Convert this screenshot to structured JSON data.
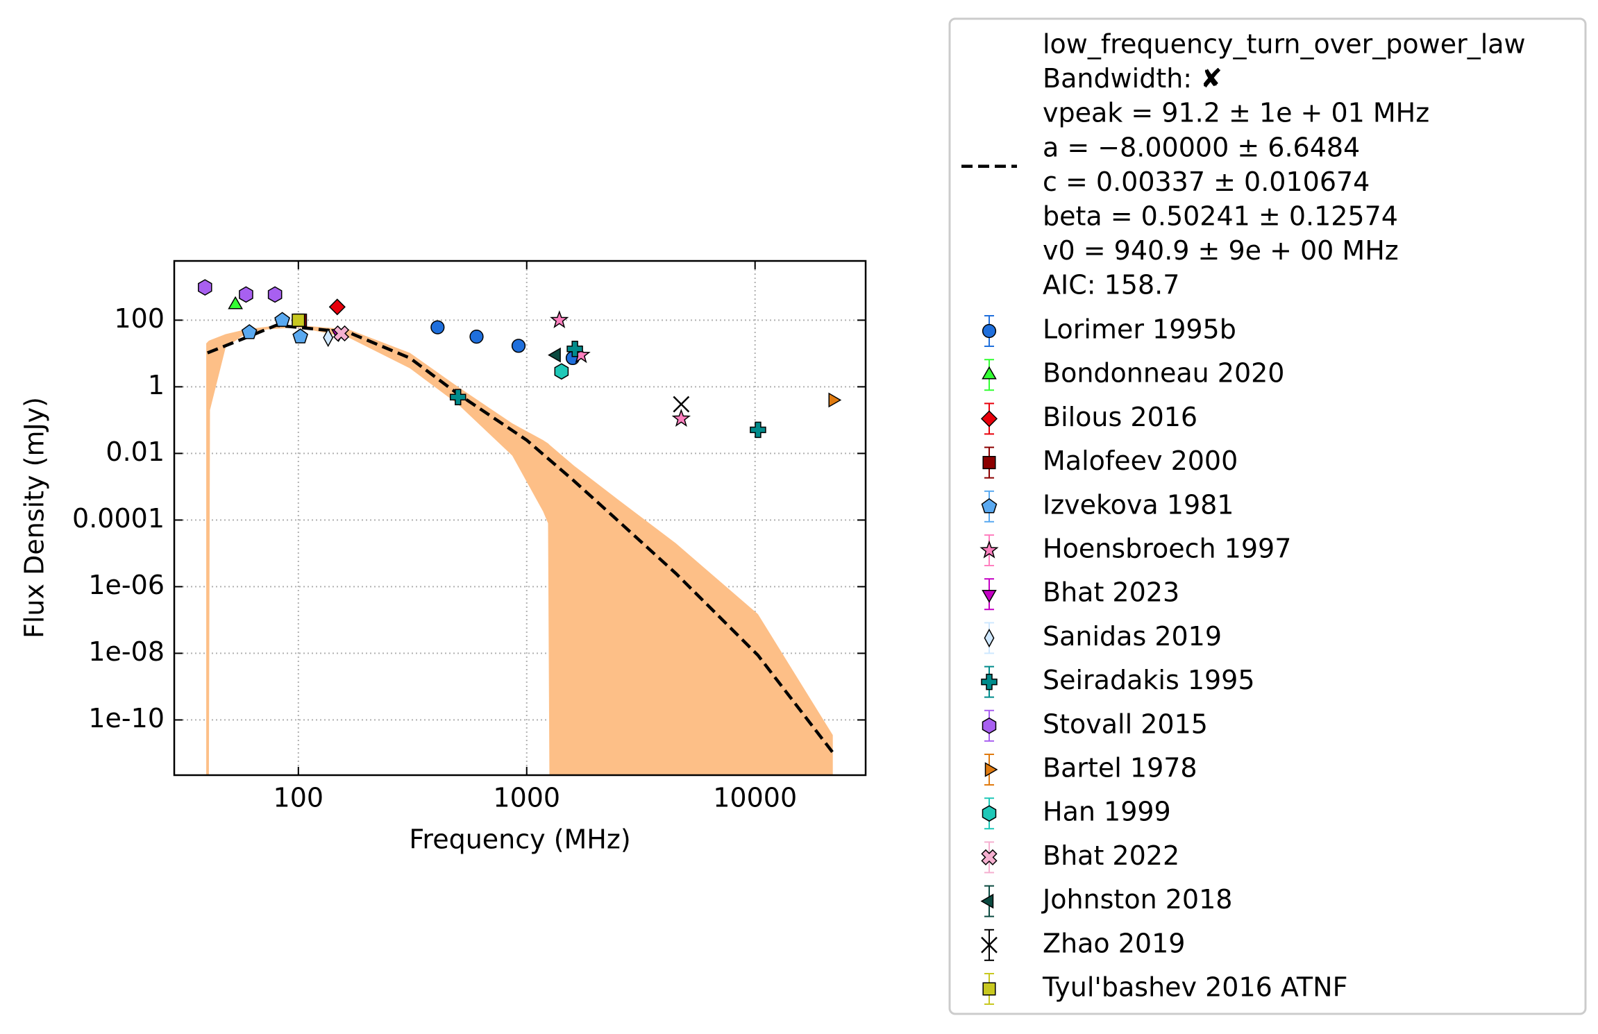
{
  "chart_data": {
    "type": "scatter",
    "xlabel": "Frequency (MHz)",
    "ylabel": "Flux Density (mJy)",
    "xscale": "log",
    "yscale": "log",
    "grid": true,
    "legend": "outside right",
    "xlim": [
      28.6,
      30500
    ],
    "ylim": [
      2.2e-12,
      6000
    ],
    "xticks": [
      100,
      1000,
      10000
    ],
    "yticks": [
      100,
      1,
      0.01,
      0.0001,
      {
        "value": 1e-06,
        "label": "1e-06"
      },
      {
        "value": 1e-08,
        "label": "1e-08"
      },
      {
        "value": 1e-10,
        "label": "1e-10"
      }
    ],
    "fit": {
      "name": "low_frequency_turn_over_power_law",
      "lines": [
        "Bandwidth: ✘",
        "vpeak = 91.2 ± 1e + 01 MHz",
        "a = −8.00000 ± 6.6484",
        "c = 0.00337 ± 0.010674",
        "beta = 0.50241 ± 0.12574",
        "v0 = 940.9 ± 9e + 00 MHz",
        "AIC: 158.7"
      ],
      "color": "#000000",
      "x": [
        40,
        59,
        80,
        100,
        166,
        308,
        500,
        1000,
        1610,
        2420,
        4500,
        10300,
        21900
      ],
      "values": [
        10.4,
        30,
        70,
        61,
        43,
        7.3,
        0.61,
        0.025,
        0.0015,
        0.00012,
        2.5e-06,
        8.7e-09,
        1.05e-11
      ]
    },
    "band": {
      "color": "#fdbf87",
      "x": [
        39.5,
        40.5,
        41,
        48,
        59,
        73,
        100,
        166,
        308,
        500,
        864,
        1180,
        1240,
        1260,
        1610,
        2420,
        4500,
        10300,
        21900
      ],
      "upper": [
        20,
        24,
        25,
        38,
        53,
        64,
        70,
        53,
        10.4,
        1,
        0.08,
        0.025,
        0.02,
        0.018,
        0.0043,
        0.0005,
        2e-05,
        1.5e-07,
        3.5e-11
      ],
      "lower": [
        1e-13,
        1e-13,
        0.2,
        15,
        40,
        53,
        61,
        30,
        3.6,
        0.3,
        0.0086,
        0.00018,
        8e-05,
        1e-13,
        1e-13,
        1e-13,
        1e-13,
        1e-13,
        1e-13
      ]
    },
    "series": [
      {
        "name": "Lorimer 1995b",
        "color": "#1f6fdc",
        "marker": "o",
        "x": [
          407,
          603,
          921,
          1590
        ],
        "values": [
          61,
          32,
          17,
          7.3
        ]
      },
      {
        "name": "Bondonneau 2020",
        "color": "#33ff33",
        "marker": "^",
        "x": [
          53
        ],
        "values": [
          290
        ]
      },
      {
        "name": "Bilous 2016",
        "color": "#e8000b",
        "marker": "D",
        "x": [
          148
        ],
        "values": [
          250
        ]
      },
      {
        "name": "Malofeev 2000",
        "color": "#8b0000",
        "marker": "s",
        "x": [
          102
        ],
        "values": [
          100
        ]
      },
      {
        "name": "Izvekova 1981",
        "color": "#5aa9f0",
        "marker": "p",
        "x": [
          61,
          85,
          102
        ],
        "values": [
          43,
          100,
          32
        ]
      },
      {
        "name": "Hoensbroech 1997",
        "color": "#ff7fbf",
        "marker": "*",
        "x": [
          1390,
          1730,
          4750
        ],
        "values": [
          100,
          9,
          0.11
        ]
      },
      {
        "name": "Bhat 2023",
        "color": "#c400c4",
        "marker": "v",
        "x": [
          150
        ],
        "values": [
          40
        ]
      },
      {
        "name": "Sanidas 2019",
        "color": "#cfe8ff",
        "marker": "d",
        "x": [
          135
        ],
        "values": [
          30
        ]
      },
      {
        "name": "Seiradakis 1995",
        "color": "#008b8b",
        "marker": "P",
        "x": [
          500,
          1625,
          10300
        ],
        "values": [
          0.49,
          13.7,
          0.051
        ]
      },
      {
        "name": "Stovall 2015",
        "color": "#a860f0",
        "marker": "h",
        "x": [
          39,
          59,
          79
        ],
        "values": [
          966,
          588,
          588
        ]
      },
      {
        "name": "Bartel 1978",
        "color": "#e07b10",
        "marker": ">",
        "x": [
          21900
        ],
        "values": [
          0.4
        ]
      },
      {
        "name": "Han 1999",
        "color": "#1fc8b8",
        "marker": "h",
        "x": [
          1420
        ],
        "values": [
          2.9
        ]
      },
      {
        "name": "Bhat 2022",
        "color": "#f5b0d0",
        "marker": "X",
        "x": [
          154
        ],
        "values": [
          40
        ]
      },
      {
        "name": "Johnston 2018",
        "color": "#0b4a40",
        "marker": "<",
        "x": [
          1350
        ],
        "values": [
          9
        ]
      },
      {
        "name": "Zhao 2019",
        "color": "#000000",
        "marker": "x",
        "x": [
          4750
        ],
        "values": [
          0.3
        ]
      },
      {
        "name": "Tyul'bashev 2016 ATNF",
        "color": "#c8c820",
        "marker": "s",
        "x": [
          100
        ],
        "values": [
          100
        ]
      }
    ]
  }
}
